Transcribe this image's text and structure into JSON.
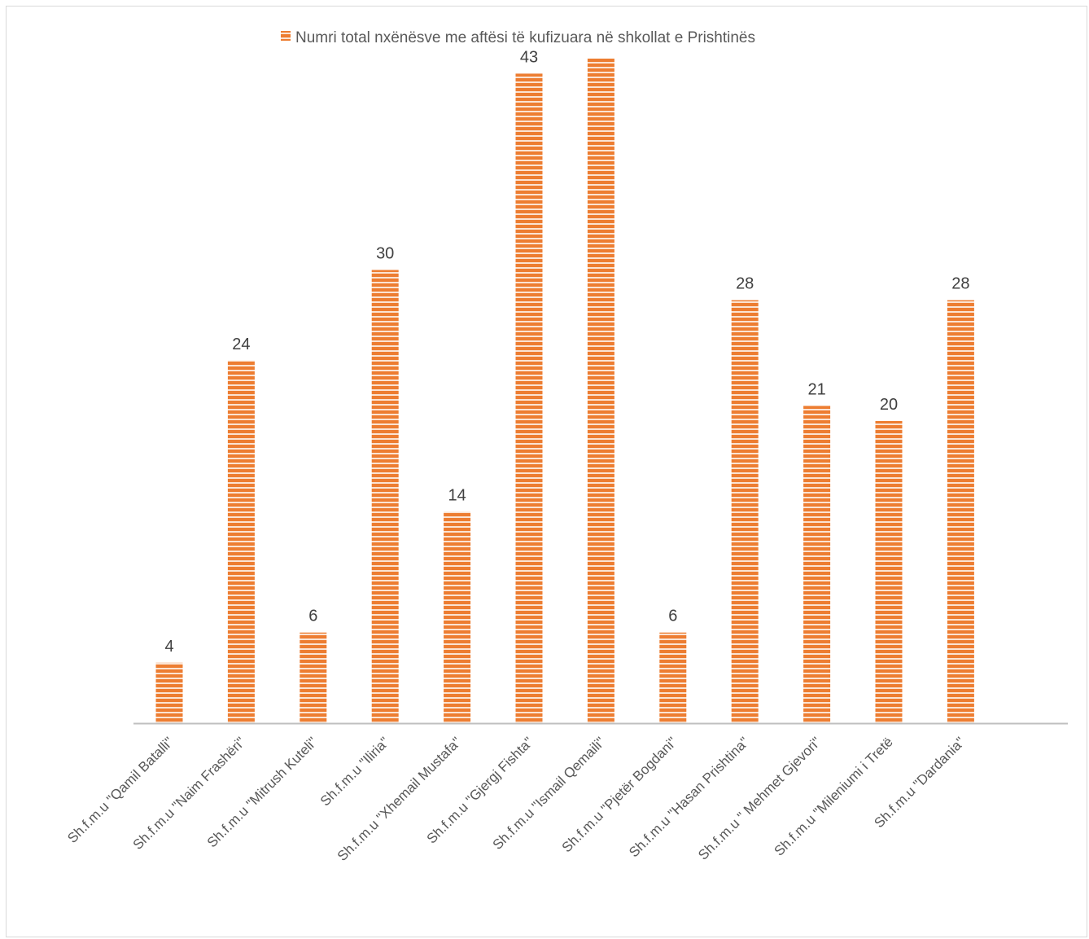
{
  "chart_data": {
    "type": "bar",
    "title": "",
    "xlabel": "",
    "ylabel": "",
    "legend": {
      "position": "top",
      "entries": [
        "Numri total nxënësve me aftësi të kufizuara në shkollat e Prishtinës"
      ]
    },
    "categories": [
      "Sh.f.m.u \"Qamil Batalli\"",
      "Sh.f.m.u \"Naim Frashëri\"",
      "Sh.f.m.u \"Mitrush Kuteli\"",
      "Sh.f.m.u \"Iliria\"",
      "Sh.f.m.u \"Xhemail Mustafa\"",
      "Sh.f.m.u \"Gjergj Fishta\"",
      "Sh.f.m.u \"Ismail Qemaili\"",
      "Sh.f.m.u \"Pjetër Bogdani\"",
      "Sh.f.m.u \"Hasan Prishtina\"",
      "Sh.f.m.u \" Mehmet Gjevori\"",
      "Sh.f.m.u \"Mileniumi i Tretë",
      "Sh.f.m.u \"Dardania\""
    ],
    "series": [
      {
        "name": "Numri total nxënësve me aftësi të kufizuara në shkollat e Prishtinës",
        "values": [
          4,
          24,
          6,
          30,
          14,
          43,
          44,
          6,
          28,
          21,
          20,
          28
        ],
        "data_labels": [
          "4",
          "24",
          "6",
          "30",
          "14",
          "43",
          "",
          "6",
          "28",
          "21",
          "20",
          "28"
        ],
        "color": "#ED7D31"
      }
    ],
    "ylim": [
      0,
      44
    ],
    "grid": false,
    "pattern": "horizontal-stripes"
  }
}
